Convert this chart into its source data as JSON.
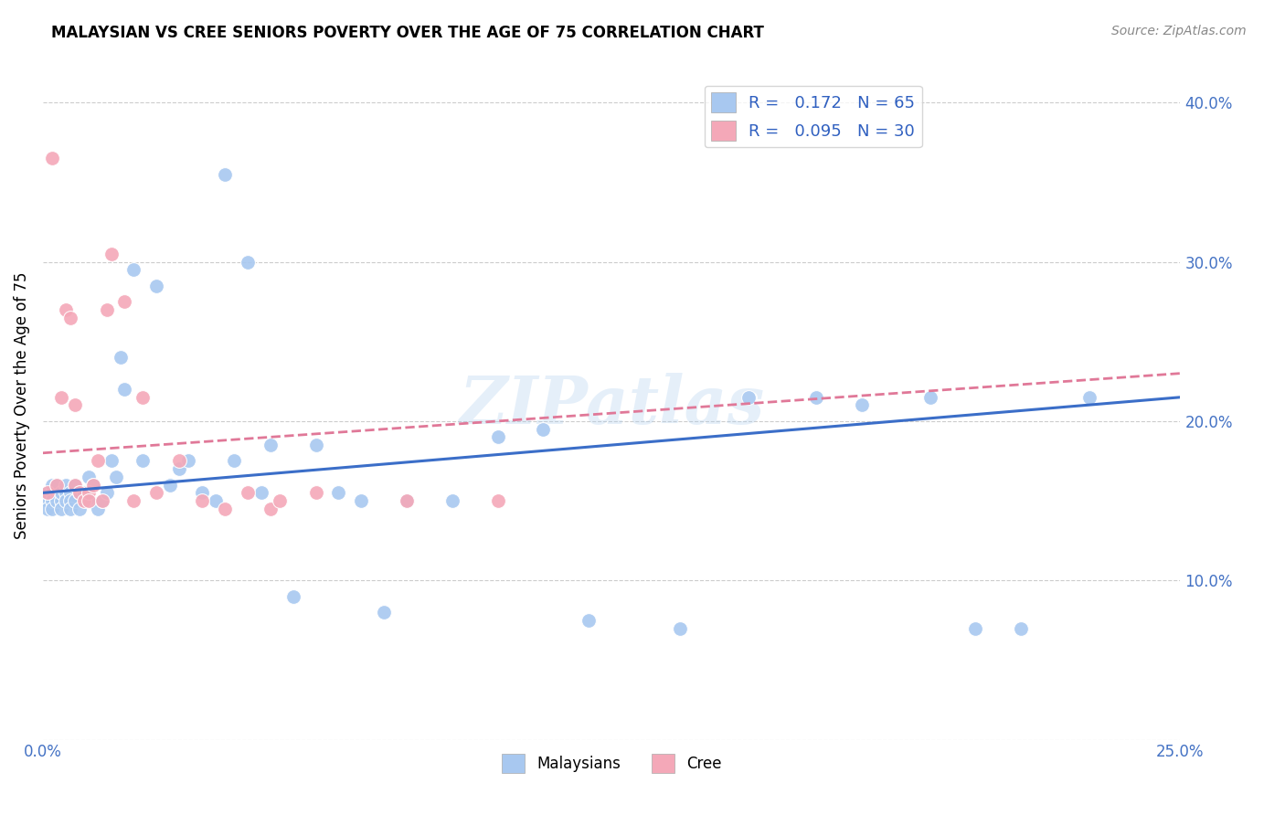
{
  "title": "MALAYSIAN VS CREE SENIORS POVERTY OVER THE AGE OF 75 CORRELATION CHART",
  "source": "Source: ZipAtlas.com",
  "ylabel": "Seniors Poverty Over the Age of 75",
  "xlim": [
    0.0,
    0.25
  ],
  "ylim": [
    0.0,
    0.42
  ],
  "R_malaysian": 0.172,
  "N_malaysian": 65,
  "R_cree": 0.095,
  "N_cree": 30,
  "blue_color": "#A8C8F0",
  "pink_color": "#F4A8B8",
  "blue_line_color": "#3B6EC8",
  "pink_line_color": "#E07898",
  "watermark": "ZIPatlas",
  "malaysian_x": [
    0.001,
    0.001,
    0.001,
    0.002,
    0.002,
    0.002,
    0.002,
    0.003,
    0.003,
    0.003,
    0.004,
    0.004,
    0.004,
    0.005,
    0.005,
    0.005,
    0.006,
    0.006,
    0.006,
    0.007,
    0.007,
    0.008,
    0.008,
    0.009,
    0.01,
    0.01,
    0.011,
    0.012,
    0.013,
    0.014,
    0.015,
    0.016,
    0.017,
    0.018,
    0.02,
    0.022,
    0.025,
    0.028,
    0.03,
    0.032,
    0.035,
    0.038,
    0.04,
    0.042,
    0.045,
    0.048,
    0.05,
    0.055,
    0.06,
    0.065,
    0.07,
    0.075,
    0.08,
    0.09,
    0.1,
    0.11,
    0.12,
    0.14,
    0.155,
    0.17,
    0.18,
    0.195,
    0.205,
    0.215,
    0.23
  ],
  "malaysian_y": [
    0.15,
    0.155,
    0.145,
    0.155,
    0.15,
    0.16,
    0.145,
    0.155,
    0.15,
    0.16,
    0.15,
    0.155,
    0.145,
    0.155,
    0.15,
    0.16,
    0.155,
    0.15,
    0.145,
    0.16,
    0.15,
    0.155,
    0.145,
    0.155,
    0.165,
    0.15,
    0.16,
    0.145,
    0.15,
    0.155,
    0.175,
    0.165,
    0.24,
    0.22,
    0.295,
    0.175,
    0.285,
    0.16,
    0.17,
    0.175,
    0.155,
    0.15,
    0.355,
    0.175,
    0.3,
    0.155,
    0.185,
    0.09,
    0.185,
    0.155,
    0.15,
    0.08,
    0.15,
    0.15,
    0.19,
    0.195,
    0.075,
    0.07,
    0.215,
    0.215,
    0.21,
    0.215,
    0.07,
    0.07,
    0.215
  ],
  "cree_x": [
    0.001,
    0.002,
    0.003,
    0.004,
    0.005,
    0.006,
    0.007,
    0.007,
    0.008,
    0.009,
    0.01,
    0.01,
    0.011,
    0.012,
    0.013,
    0.014,
    0.015,
    0.018,
    0.02,
    0.022,
    0.025,
    0.03,
    0.035,
    0.04,
    0.045,
    0.05,
    0.052,
    0.06,
    0.08,
    0.1
  ],
  "cree_y": [
    0.155,
    0.365,
    0.16,
    0.215,
    0.27,
    0.265,
    0.16,
    0.21,
    0.155,
    0.15,
    0.155,
    0.15,
    0.16,
    0.175,
    0.15,
    0.27,
    0.305,
    0.275,
    0.15,
    0.215,
    0.155,
    0.175,
    0.15,
    0.145,
    0.155,
    0.145,
    0.15,
    0.155,
    0.15,
    0.15
  ],
  "regression_blue_x0": 0.0,
  "regression_blue_x1": 0.25,
  "regression_blue_y0": 0.155,
  "regression_blue_y1": 0.215,
  "regression_pink_x0": 0.0,
  "regression_pink_x1": 0.25,
  "regression_pink_y0": 0.18,
  "regression_pink_y1": 0.23
}
